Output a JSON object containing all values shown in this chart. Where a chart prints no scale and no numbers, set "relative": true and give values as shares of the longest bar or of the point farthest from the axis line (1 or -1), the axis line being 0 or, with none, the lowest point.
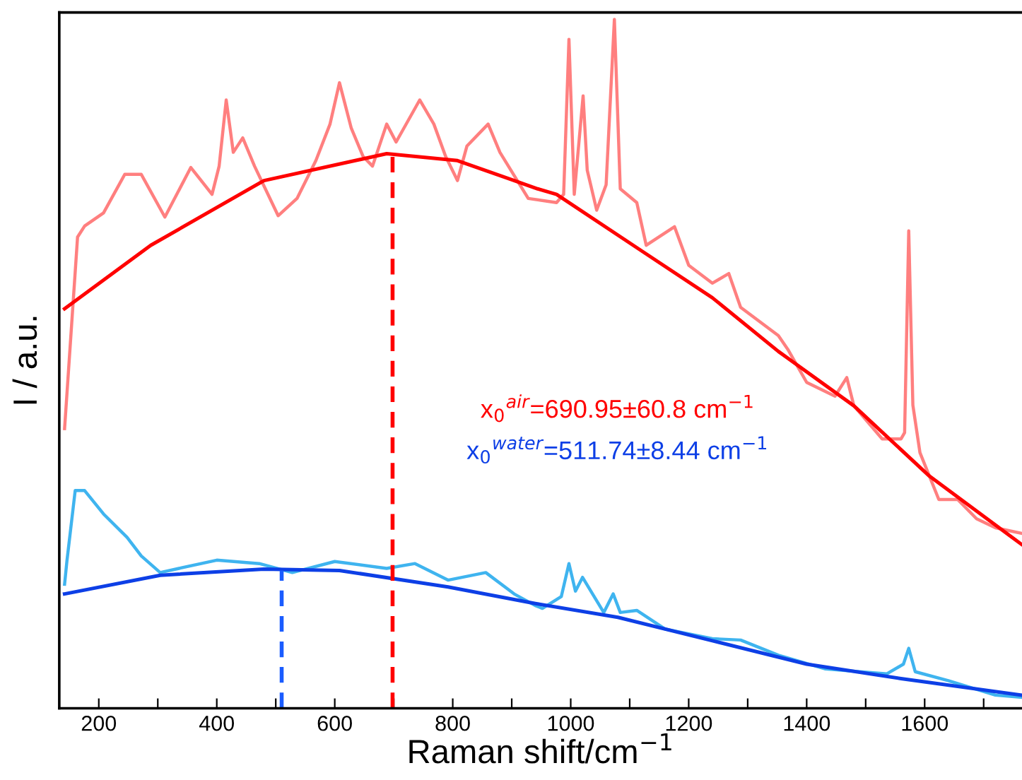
{
  "chart_data": {
    "type": "line",
    "relative": true,
    "xlabel": "Raman shift/cm$^{−1}$",
    "ylabel": "I / a.u.",
    "xlim": [
      133,
      1765
    ],
    "xticks": [
      200,
      {
        "value": 300,
        "label": null
      },
      400,
      {
        "value": 500,
        "label": null
      },
      600,
      {
        "value": 700,
        "label": null
      },
      800,
      {
        "value": 900,
        "label": null
      },
      1000,
      {
        "value": 1100,
        "label": null
      },
      1200,
      {
        "value": 1300,
        "label": null
      },
      1400,
      {
        "value": 1500,
        "label": null
      },
      1600,
      {
        "value": 1700,
        "label": null
      }
    ],
    "grid": false,
    "legend": false,
    "tick_labels": "x",
    "annotations": [
      "x$_{0}$$^{air}$=690.95±60.8 cm$^{−1}$",
      "x$_{0}$$^{water}$=511.74±8.44 cm$^{−1}$"
    ],
    "series": [
      {
        "color": "#ff7f7f",
        "line_style": "solid",
        "x": [
          142,
          164,
          176,
          208,
          244,
          272,
          312,
          356,
          392,
          404,
          416,
          428,
          444,
          464,
          504,
          536,
          568,
          592,
          608,
          628,
          648,
          664,
          688,
          704,
          744,
          768,
          788,
          808,
          824,
          860,
          880,
          928,
          976,
          988,
          997,
          1006,
          1021,
          1028,
          1044,
          1060,
          1074,
          1084,
          1112,
          1128,
          1176,
          1200,
          1240,
          1268,
          1288,
          1352,
          1368,
          1400,
          1448,
          1468,
          1480,
          1528,
          1560,
          1566,
          1573,
          1580,
          1592,
          1624,
          1656,
          1688,
          1720,
          1764
        ],
        "values": [
          0.406,
          0.684,
          0.7,
          0.719,
          0.775,
          0.775,
          0.713,
          0.785,
          0.746,
          0.787,
          0.883,
          0.807,
          0.828,
          0.787,
          0.715,
          0.74,
          0.795,
          0.848,
          0.908,
          0.842,
          0.801,
          0.787,
          0.848,
          0.822,
          0.883,
          0.848,
          0.801,
          0.766,
          0.816,
          0.848,
          0.807,
          0.74,
          0.734,
          0.746,
          0.971,
          0.746,
          0.889,
          0.781,
          0.723,
          0.76,
          1.0,
          0.754,
          0.734,
          0.672,
          0.699,
          0.643,
          0.617,
          0.631,
          0.582,
          0.541,
          0.521,
          0.473,
          0.453,
          0.48,
          0.439,
          0.391,
          0.391,
          0.4,
          0.693,
          0.44,
          0.371,
          0.303,
          0.303,
          0.275,
          0.262,
          0.254
        ]
      },
      {
        "color": "#ff0000",
        "line_style": "solid",
        "x": [
          142,
          288,
          480,
          688,
          808,
          944,
          976,
          1120,
          1240,
          1352,
          1480,
          1608,
          1764
        ],
        "values": [
          0.58,
          0.672,
          0.766,
          0.805,
          0.795,
          0.754,
          0.746,
          0.664,
          0.596,
          0.518,
          0.439,
          0.337,
          0.238
        ]
      },
      {
        "color": "#3fb4ef",
        "line_style": "solid",
        "x": [
          142,
          146,
          160,
          176,
          208,
          248,
          272,
          304,
          336,
          400,
          472,
          528,
          600,
          688,
          736,
          792,
          856,
          904,
          940,
          952,
          984,
          997,
          1008,
          1020,
          1056,
          1072,
          1084,
          1112,
          1160,
          1240,
          1288,
          1352,
          1432,
          1536,
          1564,
          1573,
          1584,
          1640,
          1720,
          1764
        ],
        "values": [
          0.18,
          0.214,
          0.316,
          0.316,
          0.282,
          0.248,
          0.221,
          0.197,
          0.203,
          0.215,
          0.21,
          0.197,
          0.213,
          0.203,
          0.21,
          0.186,
          0.197,
          0.166,
          0.149,
          0.145,
          0.162,
          0.21,
          0.17,
          0.19,
          0.139,
          0.166,
          0.139,
          0.142,
          0.115,
          0.101,
          0.099,
          0.077,
          0.057,
          0.05,
          0.064,
          0.087,
          0.053,
          0.04,
          0.019,
          0.016
        ]
      },
      {
        "color": "#0d3fe6",
        "line_style": "solid",
        "x": [
          142,
          304,
          480,
          608,
          792,
          940,
          1080,
          1240,
          1400,
          1560,
          1764
        ],
        "values": [
          0.166,
          0.193,
          0.202,
          0.2,
          0.176,
          0.152,
          0.132,
          0.098,
          0.064,
          0.043,
          0.019
        ]
      },
      {
        "color": "#ff0000",
        "line_style": "dashed",
        "x": [
          698,
          698
        ],
        "values": [
          0,
          0.805
        ]
      },
      {
        "color": "#1a5cff",
        "line_style": "dashed",
        "x": [
          510,
          510
        ],
        "values": [
          0,
          0.2
        ]
      }
    ]
  }
}
